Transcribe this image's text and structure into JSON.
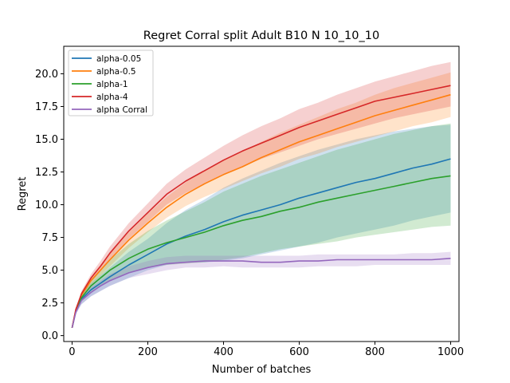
{
  "chart_data": {
    "type": "line",
    "title": "Regret Corral split Adult B10 N 10_10_10",
    "xlabel": "Number of batches",
    "ylabel": "Regret",
    "xlim": [
      -22,
      1022
    ],
    "ylim": [
      -0.45,
      22.1
    ],
    "xticks": [
      0,
      200,
      400,
      600,
      800,
      1000
    ],
    "xtick_labels": [
      "0",
      "200",
      "400",
      "600",
      "800",
      "1000"
    ],
    "yticks": [
      0.0,
      2.5,
      5.0,
      7.5,
      10.0,
      12.5,
      15.0,
      17.5,
      20.0
    ],
    "ytick_labels": [
      "0.0",
      "2.5",
      "5.0",
      "7.5",
      "10.0",
      "12.5",
      "15.0",
      "17.5",
      "20.0"
    ],
    "grid": false,
    "legend_position": "upper-left",
    "series": [
      {
        "name": "alpha-0.05",
        "color": "#1f77b4",
        "x": [
          0,
          10,
          25,
          50,
          75,
          100,
          150,
          200,
          250,
          300,
          350,
          400,
          450,
          500,
          550,
          600,
          650,
          700,
          750,
          800,
          850,
          900,
          950,
          1000
        ],
        "y": [
          0.6,
          1.9,
          2.8,
          3.5,
          4.0,
          4.5,
          5.4,
          6.2,
          7.0,
          7.6,
          8.1,
          8.7,
          9.2,
          9.6,
          10.0,
          10.5,
          10.9,
          11.3,
          11.7,
          12.0,
          12.4,
          12.8,
          13.1,
          13.5
        ],
        "lower": [
          0.6,
          1.7,
          2.4,
          3.0,
          3.4,
          3.8,
          4.4,
          5.0,
          5.4,
          5.6,
          5.6,
          5.7,
          5.9,
          6.2,
          6.5,
          6.8,
          7.1,
          7.5,
          7.8,
          8.1,
          8.4,
          8.8,
          9.1,
          9.4
        ],
        "upper": [
          0.6,
          2.1,
          3.2,
          4.0,
          4.6,
          5.2,
          6.4,
          7.4,
          8.6,
          9.6,
          10.4,
          11.3,
          12.0,
          12.6,
          13.2,
          13.7,
          14.2,
          14.6,
          15.0,
          15.3,
          15.6,
          15.8,
          16.0,
          16.1
        ]
      },
      {
        "name": "alpha-0.5",
        "color": "#ff7f0e",
        "x": [
          0,
          10,
          25,
          50,
          75,
          100,
          150,
          200,
          250,
          300,
          350,
          400,
          450,
          500,
          550,
          600,
          650,
          700,
          750,
          800,
          850,
          900,
          950,
          1000
        ],
        "y": [
          0.6,
          2.0,
          3.1,
          4.2,
          5.0,
          5.8,
          7.3,
          8.6,
          9.8,
          10.8,
          11.6,
          12.3,
          12.9,
          13.6,
          14.2,
          14.8,
          15.3,
          15.8,
          16.3,
          16.8,
          17.2,
          17.6,
          18.0,
          18.4
        ],
        "lower": [
          0.6,
          1.9,
          2.9,
          3.9,
          4.6,
          5.3,
          6.7,
          7.9,
          9.0,
          9.9,
          10.6,
          11.2,
          11.8,
          12.4,
          12.9,
          13.5,
          13.9,
          14.4,
          14.8,
          15.2,
          15.6,
          16.0,
          16.3,
          16.7
        ],
        "upper": [
          0.6,
          2.1,
          3.3,
          4.5,
          5.4,
          6.3,
          7.9,
          9.3,
          10.6,
          11.7,
          12.6,
          13.4,
          14.1,
          14.8,
          15.5,
          16.1,
          16.7,
          17.3,
          17.8,
          18.4,
          18.9,
          19.3,
          19.7,
          20.1
        ]
      },
      {
        "name": "alpha-1",
        "color": "#2ca02c",
        "x": [
          0,
          10,
          25,
          50,
          75,
          100,
          150,
          200,
          250,
          300,
          350,
          400,
          450,
          500,
          550,
          600,
          650,
          700,
          750,
          800,
          850,
          900,
          950,
          1000
        ],
        "y": [
          0.6,
          1.9,
          2.9,
          3.8,
          4.4,
          5.0,
          5.9,
          6.6,
          7.1,
          7.5,
          7.9,
          8.4,
          8.8,
          9.1,
          9.5,
          9.8,
          10.2,
          10.5,
          10.8,
          11.1,
          11.4,
          11.7,
          12.0,
          12.2
        ],
        "lower": [
          0.6,
          1.8,
          2.6,
          3.3,
          3.8,
          4.2,
          4.8,
          5.2,
          5.4,
          5.5,
          5.6,
          5.8,
          6.0,
          6.3,
          6.6,
          6.8,
          7.0,
          7.2,
          7.5,
          7.7,
          7.9,
          8.1,
          8.3,
          8.4
        ],
        "upper": [
          0.6,
          2.0,
          3.2,
          4.3,
          5.0,
          5.8,
          7.0,
          8.0,
          8.8,
          9.5,
          10.2,
          11.0,
          11.6,
          12.2,
          12.7,
          13.2,
          13.7,
          14.2,
          14.6,
          15.0,
          15.4,
          15.7,
          16.0,
          16.2
        ]
      },
      {
        "name": "alpha-4",
        "color": "#d62728",
        "x": [
          0,
          10,
          25,
          50,
          75,
          100,
          150,
          200,
          250,
          300,
          350,
          400,
          450,
          500,
          550,
          600,
          650,
          700,
          750,
          800,
          850,
          900,
          950,
          1000
        ],
        "y": [
          0.6,
          2.0,
          3.2,
          4.4,
          5.3,
          6.3,
          8.0,
          9.4,
          10.8,
          11.8,
          12.6,
          13.4,
          14.1,
          14.7,
          15.3,
          15.9,
          16.4,
          16.9,
          17.4,
          17.9,
          18.2,
          18.5,
          18.8,
          19.1
        ],
        "lower": [
          0.6,
          1.9,
          3.0,
          4.1,
          4.9,
          5.8,
          7.4,
          8.7,
          10.0,
          10.9,
          11.6,
          12.3,
          12.9,
          13.5,
          14.0,
          14.5,
          15.0,
          15.4,
          15.8,
          16.2,
          16.6,
          16.9,
          17.2,
          17.5
        ],
        "upper": [
          0.6,
          2.1,
          3.4,
          4.7,
          5.7,
          6.8,
          8.6,
          10.1,
          11.6,
          12.7,
          13.6,
          14.5,
          15.3,
          16.0,
          16.6,
          17.3,
          17.8,
          18.4,
          18.9,
          19.4,
          19.8,
          20.2,
          20.6,
          20.9
        ]
      },
      {
        "name": "alpha Corral",
        "color": "#9467bd",
        "x": [
          0,
          10,
          25,
          50,
          75,
          100,
          150,
          200,
          250,
          300,
          350,
          400,
          450,
          500,
          550,
          600,
          650,
          700,
          750,
          800,
          850,
          900,
          950,
          1000
        ],
        "y": [
          0.6,
          1.8,
          2.7,
          3.3,
          3.8,
          4.2,
          4.8,
          5.2,
          5.5,
          5.6,
          5.7,
          5.7,
          5.7,
          5.6,
          5.6,
          5.7,
          5.7,
          5.8,
          5.8,
          5.8,
          5.8,
          5.8,
          5.8,
          5.9
        ],
        "lower": [
          0.6,
          1.6,
          2.4,
          3.0,
          3.4,
          3.8,
          4.4,
          4.7,
          5.0,
          5.2,
          5.2,
          5.3,
          5.2,
          5.2,
          5.2,
          5.2,
          5.3,
          5.3,
          5.3,
          5.4,
          5.4,
          5.4,
          5.4,
          5.4
        ],
        "upper": [
          0.6,
          2.0,
          3.0,
          3.7,
          4.2,
          4.7,
          5.3,
          5.7,
          6.0,
          6.1,
          6.1,
          6.1,
          6.1,
          6.1,
          6.1,
          6.1,
          6.2,
          6.2,
          6.2,
          6.2,
          6.2,
          6.3,
          6.3,
          6.4
        ]
      }
    ]
  }
}
